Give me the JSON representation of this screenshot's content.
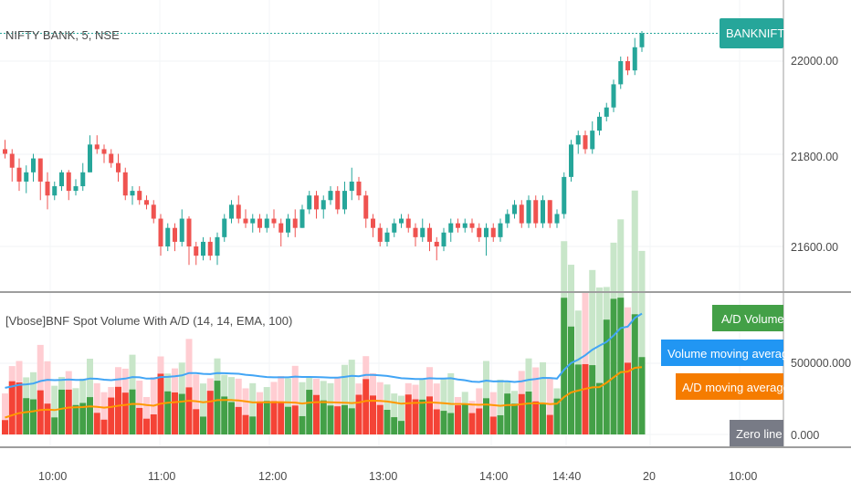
{
  "colors": {
    "bull": "#26a69a",
    "bear": "#ef5350",
    "vol_up": "#43a047",
    "vol_down": "#f44336",
    "vol_up_light": "#c8e6c9",
    "vol_down_light": "#ffcdd2",
    "vol_ma": "#42a5f5",
    "ad_ma": "#ff9800",
    "badge_green": "#26a69a",
    "badge_ad": "#43a047",
    "badge_blue": "#2196f3",
    "badge_orange": "#f57c00",
    "badge_gray": "#787b86"
  },
  "price_pane": {
    "title": "NIFTY BANK, 5, NSE",
    "symbol_badge": "BANKNIFTY",
    "y_ticks": [
      "22000.00",
      "21800.00",
      "21600.00"
    ]
  },
  "indicator_pane": {
    "title": "[Vbose]BNF Spot Volume With A/D (14, 14, EMA, 100)",
    "legend": {
      "ad_volume": "A/D Volume",
      "volume_ma": "Volume moving average",
      "ad_ma": "A/D moving average",
      "zero_line": "Zero line"
    },
    "y_ticks": [
      "500000.000",
      "0.000"
    ]
  },
  "x_axis": {
    "labels": [
      "10:00",
      "11:00",
      "12:00",
      "13:00",
      "14:00",
      "14:40",
      "20",
      "10:00"
    ]
  },
  "chart_data": {
    "type": "candlestick",
    "title": "NIFTY BANK, 5, NSE",
    "last_price": 22060,
    "ohlc": [
      [
        21810,
        21800,
        21830,
        21790
      ],
      [
        21800,
        21770,
        21810,
        21740
      ],
      [
        21770,
        21740,
        21790,
        21720
      ],
      [
        21740,
        21760,
        21775,
        21715
      ],
      [
        21760,
        21790,
        21800,
        21740
      ],
      [
        21790,
        21740,
        21790,
        21700
      ],
      [
        21740,
        21710,
        21760,
        21680
      ],
      [
        21710,
        21730,
        21740,
        21700
      ],
      [
        21730,
        21760,
        21765,
        21720
      ],
      [
        21760,
        21720,
        21765,
        21700
      ],
      [
        21720,
        21730,
        21745,
        21710
      ],
      [
        21730,
        21760,
        21780,
        21720
      ],
      [
        21760,
        21820,
        21840,
        21760
      ],
      [
        21820,
        21810,
        21840,
        21800
      ],
      [
        21810,
        21800,
        21820,
        21780
      ],
      [
        21800,
        21780,
        21810,
        21770
      ],
      [
        21780,
        21760,
        21800,
        21740
      ],
      [
        21760,
        21710,
        21770,
        21700
      ],
      [
        21710,
        21720,
        21730,
        21690
      ],
      [
        21720,
        21700,
        21730,
        21690
      ],
      [
        21700,
        21690,
        21710,
        21680
      ],
      [
        21690,
        21660,
        21700,
        21650
      ],
      [
        21660,
        21600,
        21670,
        21580
      ],
      [
        21600,
        21640,
        21650,
        21590
      ],
      [
        21640,
        21610,
        21650,
        21590
      ],
      [
        21610,
        21660,
        21680,
        21600
      ],
      [
        21660,
        21600,
        21665,
        21560
      ],
      [
        21600,
        21580,
        21610,
        21560
      ],
      [
        21580,
        21610,
        21620,
        21570
      ],
      [
        21610,
        21580,
        21620,
        21570
      ],
      [
        21580,
        21620,
        21630,
        21560
      ],
      [
        21620,
        21660,
        21670,
        21610
      ],
      [
        21660,
        21690,
        21700,
        21650
      ],
      [
        21690,
        21660,
        21710,
        21650
      ],
      [
        21660,
        21650,
        21680,
        21640
      ],
      [
        21650,
        21660,
        21670,
        21630
      ],
      [
        21660,
        21640,
        21670,
        21630
      ],
      [
        21640,
        21660,
        21670,
        21630
      ],
      [
        21660,
        21650,
        21680,
        21640
      ],
      [
        21650,
        21630,
        21660,
        21600
      ],
      [
        21630,
        21660,
        21670,
        21620
      ],
      [
        21660,
        21640,
        21680,
        21620
      ],
      [
        21640,
        21680,
        21690,
        21640
      ],
      [
        21680,
        21710,
        21720,
        21670
      ],
      [
        21710,
        21680,
        21720,
        21660
      ],
      [
        21680,
        21700,
        21710,
        21660
      ],
      [
        21700,
        21720,
        21730,
        21690
      ],
      [
        21720,
        21680,
        21730,
        21670
      ],
      [
        21680,
        21720,
        21740,
        21670
      ],
      [
        21720,
        21740,
        21770,
        21700
      ],
      [
        21740,
        21710,
        21750,
        21700
      ],
      [
        21710,
        21660,
        21720,
        21640
      ],
      [
        21660,
        21640,
        21670,
        21620
      ],
      [
        21640,
        21610,
        21650,
        21600
      ],
      [
        21610,
        21630,
        21640,
        21600
      ],
      [
        21630,
        21650,
        21660,
        21620
      ],
      [
        21650,
        21660,
        21670,
        21640
      ],
      [
        21660,
        21640,
        21670,
        21630
      ],
      [
        21640,
        21620,
        21650,
        21600
      ],
      [
        21620,
        21640,
        21660,
        21610
      ],
      [
        21640,
        21610,
        21650,
        21590
      ],
      [
        21610,
        21600,
        21620,
        21570
      ],
      [
        21600,
        21630,
        21640,
        21590
      ],
      [
        21630,
        21650,
        21660,
        21610
      ],
      [
        21650,
        21640,
        21660,
        21630
      ],
      [
        21640,
        21650,
        21660,
        21630
      ],
      [
        21650,
        21640,
        21660,
        21630
      ],
      [
        21640,
        21620,
        21650,
        21610
      ],
      [
        21620,
        21640,
        21650,
        21580
      ],
      [
        21640,
        21620,
        21650,
        21610
      ],
      [
        21620,
        21650,
        21660,
        21610
      ],
      [
        21650,
        21670,
        21680,
        21640
      ],
      [
        21670,
        21690,
        21700,
        21660
      ],
      [
        21690,
        21650,
        21700,
        21640
      ],
      [
        21650,
        21700,
        21710,
        21640
      ],
      [
        21700,
        21650,
        21710,
        21640
      ],
      [
        21650,
        21700,
        21710,
        21640
      ],
      [
        21700,
        21650,
        21700,
        21640
      ],
      [
        21650,
        21670,
        21680,
        21640
      ],
      [
        21670,
        21750,
        21760,
        21660
      ],
      [
        21750,
        21820,
        21830,
        21740
      ],
      [
        21820,
        21840,
        21850,
        21800
      ],
      [
        21840,
        21810,
        21850,
        21800
      ],
      [
        21810,
        21850,
        21870,
        21800
      ],
      [
        21850,
        21880,
        21890,
        21840
      ],
      [
        21880,
        21900,
        21910,
        21870
      ],
      [
        21900,
        21950,
        21960,
        21890
      ],
      [
        21950,
        22000,
        22010,
        21940
      ],
      [
        22000,
        21980,
        22010,
        21970
      ],
      [
        21980,
        22030,
        22050,
        21970
      ],
      [
        22030,
        22060,
        22065,
        22020
      ]
    ],
    "volume_series": [
      {
        "name": "A/D Volume"
      },
      {
        "name": "Volume moving average"
      },
      {
        "name": "A/D moving average"
      },
      {
        "name": "Zero line"
      }
    ]
  }
}
